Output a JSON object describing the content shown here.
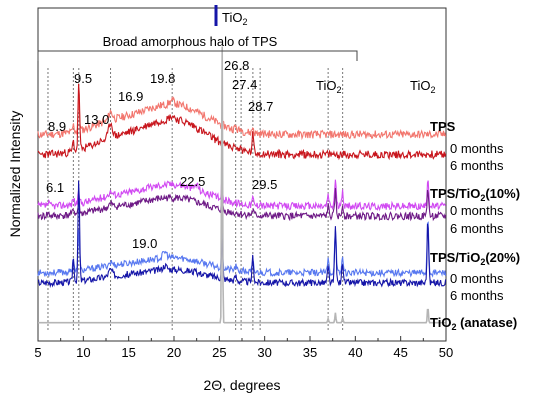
{
  "chart_data": {
    "type": "line",
    "xlabel": "2Θ, degrees",
    "ylabel": "Normalized Intensity",
    "xlim": [
      5,
      50
    ],
    "x_ticks": [
      5,
      10,
      15,
      20,
      25,
      30,
      35,
      40,
      45,
      50
    ],
    "y_ticks_labeled": false,
    "grid": false,
    "annotations": {
      "halo": "Broad amorphous halo of TPS",
      "tio2_top": "TiO",
      "tio2_mid": "TiO",
      "tio2_right": "TiO",
      "tio2_sub": "2",
      "peaks": [
        "8.9",
        "9.5",
        "13.0",
        "16.9",
        "19.8",
        "26.8",
        "27.4",
        "28.7",
        "6.1",
        "22.5",
        "29.5",
        "19.0"
      ]
    },
    "group_labels": {
      "tps": "TPS",
      "tps10_a": "TPS/TiO",
      "tps10_sub": "2",
      "tps10_b": "(10%)",
      "tps20_a": "TPS/TiO",
      "tps20_sub": "2",
      "tps20_b": "(20%)",
      "anatase_a": "TiO",
      "anatase_sub": "2",
      "anatase_b": " (anatase)"
    },
    "series": [
      {
        "name": "0 months",
        "group": "TPS",
        "color": "#f2766e",
        "baseline": 0.62,
        "halo": 0.09,
        "noise": 0.012,
        "seed": 11,
        "peaks": [
          [
            8.9,
            0.02,
            0.12
          ],
          [
            9.5,
            0.09,
            0.12
          ],
          [
            13.0,
            0.025,
            0.3
          ],
          [
            19.8,
            0.01,
            0.4
          ],
          [
            26.8,
            0.01,
            0.12
          ],
          [
            27.4,
            0.008,
            0.12
          ],
          [
            28.7,
            0.018,
            0.12
          ]
        ]
      },
      {
        "name": "6 months",
        "group": "TPS",
        "color": "#c8161d",
        "baseline": 0.56,
        "halo": 0.105,
        "noise": 0.012,
        "seed": 23,
        "peaks": [
          [
            8.9,
            0.03,
            0.12
          ],
          [
            9.5,
            0.21,
            0.12
          ],
          [
            13.0,
            0.045,
            0.3
          ],
          [
            19.8,
            0.01,
            0.4
          ],
          [
            26.8,
            0.015,
            0.12
          ],
          [
            27.4,
            0.012,
            0.12
          ],
          [
            28.7,
            0.055,
            0.12
          ]
        ]
      },
      {
        "name": "0 months",
        "group": "TPS/TiO2(10%)",
        "color": "#d14af2",
        "baseline": 0.405,
        "halo": 0.065,
        "noise": 0.011,
        "seed": 37,
        "peaks": [
          [
            6.1,
            0.008,
            0.2
          ],
          [
            8.9,
            0.02,
            0.12
          ],
          [
            9.5,
            0.03,
            0.12
          ],
          [
            13.0,
            0.012,
            0.3
          ],
          [
            22.5,
            0.015,
            0.3
          ],
          [
            25.3,
            0.05,
            0.1
          ],
          [
            28.7,
            0.02,
            0.12
          ],
          [
            29.5,
            0.012,
            0.12
          ],
          [
            37.0,
            0.035,
            0.12
          ],
          [
            37.8,
            0.085,
            0.12
          ],
          [
            38.6,
            0.04,
            0.12
          ],
          [
            48.0,
            0.09,
            0.12
          ]
        ]
      },
      {
        "name": "6 months",
        "group": "TPS/TiO2(10%)",
        "color": "#6e1a86",
        "baseline": 0.375,
        "halo": 0.055,
        "noise": 0.011,
        "seed": 41,
        "peaks": [
          [
            6.1,
            0.008,
            0.2
          ],
          [
            8.9,
            0.02,
            0.12
          ],
          [
            9.5,
            0.035,
            0.12
          ],
          [
            13.0,
            0.01,
            0.3
          ],
          [
            25.3,
            0.045,
            0.1
          ],
          [
            28.7,
            0.015,
            0.12
          ],
          [
            37.0,
            0.03,
            0.12
          ],
          [
            37.8,
            0.075,
            0.12
          ],
          [
            38.6,
            0.035,
            0.12
          ],
          [
            48.0,
            0.085,
            0.12
          ]
        ]
      },
      {
        "name": "0 months",
        "group": "TPS/TiO2(20%)",
        "color": "#5878f0",
        "baseline": 0.205,
        "halo": 0.045,
        "noise": 0.01,
        "seed": 53,
        "peaks": [
          [
            8.9,
            0.04,
            0.12
          ],
          [
            9.5,
            0.12,
            0.12
          ],
          [
            13.0,
            0.01,
            0.3
          ],
          [
            19.0,
            0.018,
            0.3
          ],
          [
            25.3,
            0.1,
            0.1
          ],
          [
            26.8,
            0.012,
            0.12
          ],
          [
            28.7,
            0.03,
            0.12
          ],
          [
            37.0,
            0.04,
            0.12
          ],
          [
            37.8,
            0.14,
            0.12
          ],
          [
            38.6,
            0.05,
            0.12
          ],
          [
            48.0,
            0.17,
            0.12
          ]
        ]
      },
      {
        "name": "6 months",
        "group": "TPS/TiO2(20%)",
        "color": "#1515a8",
        "baseline": 0.175,
        "halo": 0.04,
        "noise": 0.01,
        "seed": 67,
        "peaks": [
          [
            8.9,
            0.07,
            0.12
          ],
          [
            9.5,
            0.31,
            0.12
          ],
          [
            13.0,
            0.02,
            0.3
          ],
          [
            19.0,
            0.012,
            0.3
          ],
          [
            25.3,
            0.12,
            0.1
          ],
          [
            26.8,
            0.015,
            0.12
          ],
          [
            28.7,
            0.08,
            0.12
          ],
          [
            37.0,
            0.045,
            0.12
          ],
          [
            37.8,
            0.16,
            0.12
          ],
          [
            38.6,
            0.06,
            0.12
          ],
          [
            48.0,
            0.19,
            0.12
          ]
        ]
      },
      {
        "name": "TiO2 (anatase)",
        "group": "TiO2 (anatase)",
        "color": "#b5b5b5",
        "baseline": 0.055,
        "halo": 0.0,
        "noise": 0.0,
        "seed": 71,
        "peaks": [
          [
            25.3,
            0.9,
            0.07
          ],
          [
            37.0,
            0.012,
            0.08
          ],
          [
            37.8,
            0.03,
            0.08
          ],
          [
            38.6,
            0.014,
            0.08
          ],
          [
            48.0,
            0.05,
            0.08
          ]
        ]
      }
    ],
    "dotted_guides": [
      8.9,
      9.5,
      13.0,
      19.8,
      26.8,
      27.4,
      28.7,
      6.1,
      29.5,
      37.0,
      38.6
    ]
  }
}
